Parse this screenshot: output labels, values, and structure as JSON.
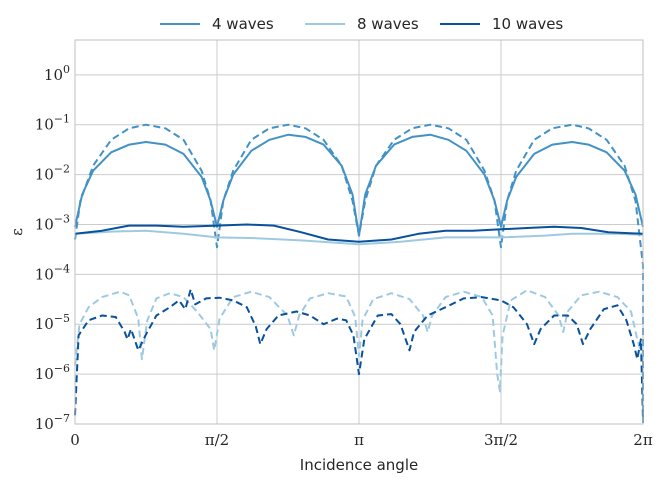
{
  "chart_data": {
    "type": "line",
    "xlabel": "Incidence angle",
    "ylabel": "ε",
    "x_scale": "linear",
    "y_scale": "log",
    "xlim": [
      0,
      6.2832
    ],
    "ylim": [
      1e-07,
      5
    ],
    "grid": true,
    "legend_placement": "top (outside plot, horizontal)",
    "x_ticks": [
      {
        "value": 0,
        "label": "0"
      },
      {
        "value": 1.5708,
        "label": "π/2"
      },
      {
        "value": 3.1416,
        "label": "π"
      },
      {
        "value": 4.7124,
        "label": "3π/2"
      },
      {
        "value": 6.2832,
        "label": "2π"
      }
    ],
    "y_ticks": [
      {
        "value": 1e-07,
        "base": "10",
        "exp": "−7"
      },
      {
        "value": 1e-06,
        "base": "10",
        "exp": "−6"
      },
      {
        "value": 1e-05,
        "base": "10",
        "exp": "−5"
      },
      {
        "value": 0.0001,
        "base": "10",
        "exp": "−4"
      },
      {
        "value": 0.001,
        "base": "10",
        "exp": "−3"
      },
      {
        "value": 0.01,
        "base": "10",
        "exp": "−2"
      },
      {
        "value": 0.1,
        "base": "10",
        "exp": "−1"
      },
      {
        "value": 1,
        "base": "10",
        "exp": "0"
      }
    ],
    "series": [
      {
        "name": "4 waves",
        "color": "#4292c6",
        "style": "solid",
        "points": [
          [
            0,
            0.0009
          ],
          [
            0.08,
            0.004
          ],
          [
            0.2,
            0.012
          ],
          [
            0.4,
            0.028
          ],
          [
            0.6,
            0.04
          ],
          [
            0.785,
            0.045
          ],
          [
            1.0,
            0.04
          ],
          [
            1.2,
            0.026
          ],
          [
            1.4,
            0.009
          ],
          [
            1.5,
            0.003
          ],
          [
            1.5708,
            0.0009
          ],
          [
            1.64,
            0.003
          ],
          [
            1.75,
            0.01
          ],
          [
            1.95,
            0.03
          ],
          [
            2.15,
            0.05
          ],
          [
            2.36,
            0.063
          ],
          [
            2.55,
            0.057
          ],
          [
            2.75,
            0.04
          ],
          [
            2.95,
            0.015
          ],
          [
            3.07,
            0.004
          ],
          [
            3.1416,
            0.0006
          ],
          [
            3.21,
            0.004
          ],
          [
            3.33,
            0.015
          ],
          [
            3.53,
            0.04
          ],
          [
            3.73,
            0.057
          ],
          [
            3.93,
            0.063
          ],
          [
            4.13,
            0.05
          ],
          [
            4.33,
            0.03
          ],
          [
            4.53,
            0.01
          ],
          [
            4.64,
            0.003
          ],
          [
            4.7124,
            0.0009
          ],
          [
            4.78,
            0.003
          ],
          [
            4.88,
            0.009
          ],
          [
            5.08,
            0.026
          ],
          [
            5.28,
            0.04
          ],
          [
            5.5,
            0.045
          ],
          [
            5.68,
            0.04
          ],
          [
            5.88,
            0.028
          ],
          [
            6.08,
            0.012
          ],
          [
            6.2,
            0.004
          ],
          [
            6.2832,
            0.0009
          ]
        ]
      },
      {
        "name": "",
        "color": "#4292c6",
        "style": "dashed",
        "points": [
          [
            0,
            0.0005
          ],
          [
            0.06,
            0.003
          ],
          [
            0.2,
            0.015
          ],
          [
            0.4,
            0.05
          ],
          [
            0.6,
            0.085
          ],
          [
            0.785,
            0.1
          ],
          [
            1.0,
            0.085
          ],
          [
            1.2,
            0.05
          ],
          [
            1.4,
            0.012
          ],
          [
            1.5,
            0.003
          ],
          [
            1.5708,
            0.00035
          ],
          [
            1.64,
            0.003
          ],
          [
            1.75,
            0.012
          ],
          [
            1.95,
            0.05
          ],
          [
            2.15,
            0.085
          ],
          [
            2.36,
            0.1
          ],
          [
            2.55,
            0.085
          ],
          [
            2.75,
            0.05
          ],
          [
            2.95,
            0.015
          ],
          [
            3.07,
            0.003
          ],
          [
            3.1416,
            0.0006
          ],
          [
            3.21,
            0.003
          ],
          [
            3.33,
            0.015
          ],
          [
            3.53,
            0.05
          ],
          [
            3.73,
            0.085
          ],
          [
            3.93,
            0.1
          ],
          [
            4.13,
            0.085
          ],
          [
            4.33,
            0.05
          ],
          [
            4.53,
            0.012
          ],
          [
            4.64,
            0.003
          ],
          [
            4.7124,
            0.00035
          ],
          [
            4.78,
            0.003
          ],
          [
            4.88,
            0.012
          ],
          [
            5.08,
            0.05
          ],
          [
            5.28,
            0.085
          ],
          [
            5.5,
            0.1
          ],
          [
            5.68,
            0.085
          ],
          [
            5.88,
            0.05
          ],
          [
            6.08,
            0.015
          ],
          [
            6.2,
            0.003
          ],
          [
            6.2832,
            0.00015
          ],
          [
            6.2832,
            1e-07
          ]
        ]
      },
      {
        "name": "8 waves",
        "color": "#9ecae1",
        "style": "solid",
        "points": [
          [
            0,
            0.00065
          ],
          [
            0.4,
            0.00072
          ],
          [
            0.785,
            0.00075
          ],
          [
            1.2,
            0.00065
          ],
          [
            1.5708,
            0.00055
          ],
          [
            2.0,
            0.00053
          ],
          [
            2.5,
            0.00048
          ],
          [
            3.1416,
            0.0004
          ],
          [
            3.6,
            0.00045
          ],
          [
            4.1,
            0.00055
          ],
          [
            4.7124,
            0.00055
          ],
          [
            5.2,
            0.0006
          ],
          [
            5.5,
            0.00065
          ],
          [
            6.0,
            0.00065
          ],
          [
            6.2832,
            0.00062
          ]
        ]
      },
      {
        "name": "",
        "color": "#9ecae1",
        "style": "dashed",
        "points": [
          [
            0,
            1.5e-06
          ],
          [
            0.05,
            1e-05
          ],
          [
            0.15,
            2.2e-05
          ],
          [
            0.3,
            3.5e-05
          ],
          [
            0.5,
            4.5e-05
          ],
          [
            0.6,
            3.8e-05
          ],
          [
            0.7,
            1.3e-05
          ],
          [
            0.74,
            2e-06
          ],
          [
            0.8,
            1.2e-05
          ],
          [
            0.9,
            3.3e-05
          ],
          [
            1.05,
            4.2e-05
          ],
          [
            1.2,
            3.5e-05
          ],
          [
            1.35,
            1.8e-05
          ],
          [
            1.5,
            8e-06
          ],
          [
            1.54,
            3e-06
          ],
          [
            1.6,
            1.3e-05
          ],
          [
            1.75,
            3.5e-05
          ],
          [
            1.95,
            4.5e-05
          ],
          [
            2.15,
            3.5e-05
          ],
          [
            2.35,
            1.5e-05
          ],
          [
            2.42,
            6e-06
          ],
          [
            2.48,
            1.5e-05
          ],
          [
            2.6,
            3.3e-05
          ],
          [
            2.8,
            4.2e-05
          ],
          [
            3.0,
            3.6e-05
          ],
          [
            3.1,
            1.4e-05
          ],
          [
            3.1416,
            2.3e-06
          ],
          [
            3.18,
            1.2e-05
          ],
          [
            3.3,
            3.2e-05
          ],
          [
            3.5,
            4.2e-05
          ],
          [
            3.7,
            3.2e-05
          ],
          [
            3.85,
            1.5e-05
          ],
          [
            3.9,
            7e-06
          ],
          [
            3.95,
            1.5e-05
          ],
          [
            4.1,
            3.5e-05
          ],
          [
            4.3,
            4.5e-05
          ],
          [
            4.5,
            3.5e-05
          ],
          [
            4.62,
            1.5e-05
          ],
          [
            4.67,
            1e-06
          ],
          [
            4.7,
            4.5e-07
          ],
          [
            4.73,
            6e-06
          ],
          [
            4.82,
            3e-05
          ],
          [
            5.0,
            4.8e-05
          ],
          [
            5.2,
            3.5e-05
          ],
          [
            5.35,
            1.5e-05
          ],
          [
            5.4,
            7e-06
          ],
          [
            5.45,
            1.8e-05
          ],
          [
            5.6,
            3.8e-05
          ],
          [
            5.8,
            4.5e-05
          ],
          [
            6.0,
            3.5e-05
          ],
          [
            6.15,
            1.8e-05
          ],
          [
            6.22,
            5e-06
          ],
          [
            6.2832,
            2e-06
          ]
        ]
      },
      {
        "name": "10 waves",
        "color": "#08519c",
        "style": "solid",
        "points": [
          [
            0,
            0.00065
          ],
          [
            0.3,
            0.00075
          ],
          [
            0.6,
            0.00095
          ],
          [
            0.9,
            0.00095
          ],
          [
            1.2,
            0.0009
          ],
          [
            1.5708,
            0.00095
          ],
          [
            1.9,
            0.001
          ],
          [
            2.2,
            0.00095
          ],
          [
            2.5,
            0.0007
          ],
          [
            2.8,
            0.0005
          ],
          [
            3.1416,
            0.00045
          ],
          [
            3.5,
            0.0005
          ],
          [
            3.8,
            0.00065
          ],
          [
            4.1,
            0.00075
          ],
          [
            4.4,
            0.00075
          ],
          [
            4.7124,
            0.0008
          ],
          [
            5.0,
            0.00085
          ],
          [
            5.3,
            0.0009
          ],
          [
            5.6,
            0.00085
          ],
          [
            5.9,
            0.0007
          ],
          [
            6.2832,
            0.00065
          ]
        ]
      },
      {
        "name": "",
        "color": "#08519c",
        "style": "dashed",
        "points": [
          [
            0,
            1.5e-07
          ],
          [
            0.04,
            6e-06
          ],
          [
            0.15,
            1.2e-05
          ],
          [
            0.3,
            1.5e-05
          ],
          [
            0.45,
            1.4e-05
          ],
          [
            0.55,
            7e-06
          ],
          [
            0.58,
            5e-06
          ],
          [
            0.62,
            8e-06
          ],
          [
            0.7,
            3e-06
          ],
          [
            0.78,
            6e-06
          ],
          [
            0.9,
            1.5e-05
          ],
          [
            1.05,
            2.2e-05
          ],
          [
            1.15,
            3e-05
          ],
          [
            1.22,
            2e-05
          ],
          [
            1.28,
            5e-05
          ],
          [
            1.33,
            2.5e-05
          ],
          [
            1.45,
            3.3e-05
          ],
          [
            1.6,
            3.4e-05
          ],
          [
            1.75,
            3e-05
          ],
          [
            1.9,
            2.2e-05
          ],
          [
            2.0,
            9e-06
          ],
          [
            2.05,
            4e-06
          ],
          [
            2.12,
            8e-06
          ],
          [
            2.25,
            1.5e-05
          ],
          [
            2.45,
            1.8e-05
          ],
          [
            2.6,
            1.5e-05
          ],
          [
            2.75,
            1e-05
          ],
          [
            2.9,
            1.3e-05
          ],
          [
            3.0,
            1.2e-05
          ],
          [
            3.08,
            6e-06
          ],
          [
            3.1416,
            1e-06
          ],
          [
            3.2,
            5e-06
          ],
          [
            3.35,
            1.5e-05
          ],
          [
            3.5,
            1.6e-05
          ],
          [
            3.6,
            1e-05
          ],
          [
            3.7,
            3e-06
          ],
          [
            3.75,
            7e-06
          ],
          [
            3.9,
            1.5e-05
          ],
          [
            4.1,
            2.2e-05
          ],
          [
            4.3,
            3.3e-05
          ],
          [
            4.5,
            3.5e-05
          ],
          [
            4.7124,
            3e-05
          ],
          [
            4.85,
            2.2e-05
          ],
          [
            5.0,
            1e-05
          ],
          [
            5.08,
            4e-06
          ],
          [
            5.15,
            8e-06
          ],
          [
            5.3,
            1.5e-05
          ],
          [
            5.45,
            1.5e-05
          ],
          [
            5.55,
            1e-05
          ],
          [
            5.62,
            4e-06
          ],
          [
            5.7,
            8e-06
          ],
          [
            5.85,
            2e-05
          ],
          [
            6.0,
            2.4e-05
          ],
          [
            6.1,
            1.2e-05
          ],
          [
            6.18,
            4e-06
          ],
          [
            6.22,
            2e-06
          ],
          [
            6.26,
            5e-06
          ],
          [
            6.2832,
            1.2e-07
          ]
        ]
      }
    ]
  }
}
